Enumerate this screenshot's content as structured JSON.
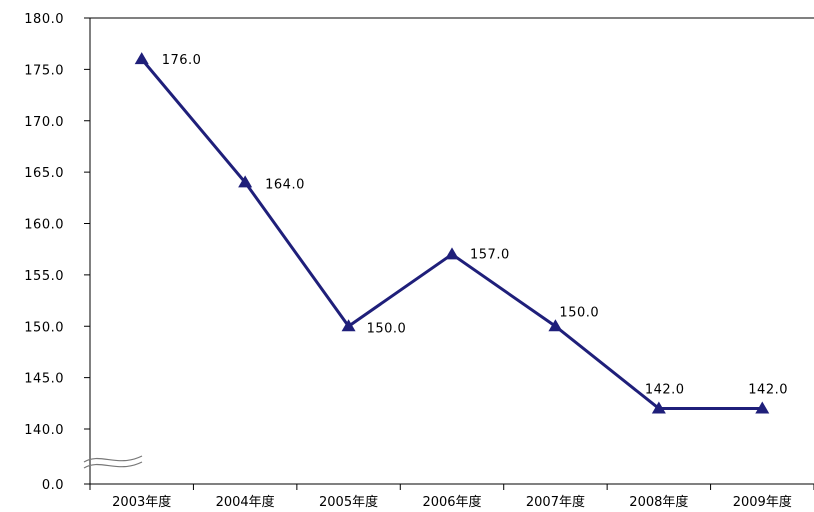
{
  "chart_data": {
    "type": "line",
    "title": "",
    "xlabel": "",
    "ylabel": "",
    "categories": [
      "2003年度",
      "2004年度",
      "2005年度",
      "2006年度",
      "2007年度",
      "2008年度",
      "2009年度"
    ],
    "series": [
      {
        "values": [
          176.0,
          164.0,
          150.0,
          157.0,
          150.0,
          142.0,
          142.0
        ],
        "labels": [
          "176.0",
          "164.0",
          "150.0",
          "157.0",
          "150.0",
          "142.0",
          "142.0"
        ],
        "color": "#1f1f7a",
        "marker": "triangle"
      }
    ],
    "ylim": [
      140,
      180
    ],
    "y_ticks": [
      "180.0",
      "175.0",
      "170.0",
      "165.0",
      "160.0",
      "155.0",
      "150.0",
      "145.0",
      "140.0"
    ],
    "y_baseline_label": "0.0",
    "axis_break": true,
    "grid": false,
    "legend": "none"
  }
}
